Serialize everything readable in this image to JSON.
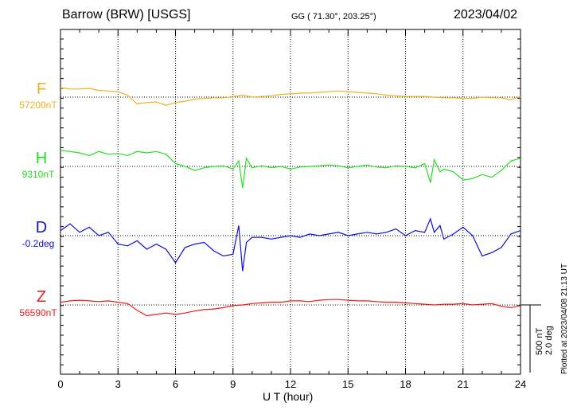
{
  "header": {
    "station": "Barrow (BRW)  [USGS]",
    "coords": "GG ( 71.30°, 203.25°)",
    "date": "2023/04/02"
  },
  "footer": {
    "plotted": "Plotted at 2023/04/08 21:13 UT"
  },
  "scale": {
    "nt": "500 nT",
    "deg": "2.0 deg"
  },
  "chart_data": {
    "type": "line",
    "xlabel": "U T (hour)",
    "xlim": [
      0,
      24
    ],
    "xticks": [
      "0",
      "3",
      "6",
      "9",
      "12",
      "15",
      "18",
      "21",
      "24"
    ],
    "grid": true,
    "series": [
      {
        "name": "F",
        "baseline_label": "57200nT",
        "color": "#f0b020",
        "x": [
          0,
          0.5,
          1,
          1.5,
          2,
          2.5,
          3,
          3.5,
          4,
          4.5,
          5,
          5.5,
          6,
          6.5,
          7,
          7.5,
          8,
          8.5,
          9,
          9.5,
          10,
          10.5,
          11,
          11.5,
          12,
          12.5,
          13,
          13.5,
          14,
          14.5,
          15,
          15.5,
          16,
          16.5,
          17,
          17.5,
          18,
          18.5,
          19,
          19.5,
          20,
          20.5,
          21,
          21.5,
          22,
          22.5,
          23,
          23.5,
          24
        ],
        "y": [
          70,
          60,
          60,
          65,
          50,
          45,
          40,
          15,
          -50,
          -40,
          -35,
          -60,
          -40,
          -30,
          -15,
          -10,
          -5,
          -5,
          5,
          15,
          0,
          5,
          10,
          20,
          25,
          30,
          30,
          35,
          40,
          45,
          40,
          35,
          30,
          25,
          15,
          10,
          5,
          5,
          5,
          0,
          -5,
          -5,
          -10,
          -10,
          0,
          -5,
          -5,
          -20,
          5
        ]
      },
      {
        "name": "H",
        "baseline_label": "9310nT",
        "color": "#22e022",
        "x": [
          0,
          0.5,
          1,
          1.5,
          2,
          2.5,
          3,
          3.5,
          4,
          4.5,
          5,
          5.5,
          6,
          6.5,
          7,
          7.5,
          8,
          8.5,
          9,
          9.3,
          9.5,
          9.7,
          10,
          10.5,
          11,
          11.5,
          12,
          12.5,
          13,
          13.5,
          14,
          14.5,
          15,
          15.5,
          16,
          16.5,
          17,
          17.5,
          18,
          18.5,
          19,
          19.3,
          19.5,
          19.8,
          20,
          20.5,
          21,
          21.5,
          22,
          22.5,
          23,
          23.5,
          24
        ],
        "y": [
          120,
          110,
          100,
          80,
          110,
          90,
          95,
          80,
          110,
          100,
          110,
          90,
          20,
          0,
          -30,
          -10,
          0,
          5,
          -20,
          40,
          -160,
          60,
          -10,
          5,
          -10,
          0,
          -20,
          -5,
          0,
          5,
          10,
          5,
          -10,
          0,
          10,
          -5,
          -10,
          5,
          0,
          -10,
          20,
          -120,
          50,
          -40,
          -20,
          -40,
          -100,
          -90,
          -60,
          -80,
          -30,
          40,
          60
        ]
      },
      {
        "name": "D",
        "baseline_label": "-0.2deg",
        "color": "#1010d0",
        "x": [
          0,
          0.5,
          1,
          1.5,
          2,
          2.5,
          3,
          3.5,
          4,
          4.5,
          5,
          5.5,
          6,
          6.5,
          7,
          7.5,
          8,
          8.5,
          9,
          9.3,
          9.5,
          9.7,
          10,
          10.5,
          11,
          11.5,
          12,
          12.5,
          13,
          13.5,
          14,
          14.5,
          15,
          15.5,
          16,
          16.5,
          17,
          17.5,
          18,
          18.5,
          19,
          19.3,
          19.5,
          19.8,
          20,
          20.5,
          21,
          21.5,
          22,
          22.5,
          23,
          23.5,
          24
        ],
        "y": [
          0.15,
          0.35,
          0.1,
          0.25,
          0.0,
          0.1,
          -0.25,
          -0.3,
          -0.15,
          -0.4,
          -0.25,
          -0.4,
          -0.8,
          -0.35,
          -0.25,
          -0.2,
          -0.45,
          -0.6,
          -0.55,
          0.3,
          -1.05,
          -0.2,
          -0.05,
          -0.05,
          -0.1,
          -0.05,
          0.0,
          -0.05,
          0.05,
          0.0,
          0.05,
          0.1,
          0.0,
          0.05,
          0.1,
          0.05,
          0.1,
          0.2,
          0.0,
          0.15,
          0.1,
          0.5,
          0.1,
          0.3,
          -0.1,
          0.05,
          0.25,
          0.0,
          -0.6,
          -0.5,
          -0.35,
          0.05,
          0.15
        ]
      },
      {
        "name": "Z",
        "baseline_label": "56590nT",
        "color": "#ee1c1c",
        "x": [
          0,
          0.5,
          1,
          1.5,
          2,
          2.5,
          3,
          3.5,
          4,
          4.5,
          5,
          5.5,
          6,
          6.5,
          7,
          7.5,
          8,
          8.5,
          9,
          9.5,
          10,
          10.5,
          11,
          11.5,
          12,
          12.5,
          13,
          13.5,
          14,
          14.5,
          15,
          15.5,
          16,
          16.5,
          17,
          17.5,
          18,
          18.5,
          19,
          19.5,
          20,
          20.5,
          21,
          21.5,
          22,
          22.5,
          23,
          23.5,
          24
        ],
        "y": [
          20,
          30,
          35,
          30,
          25,
          30,
          20,
          10,
          -40,
          -80,
          -70,
          -60,
          -70,
          -60,
          -45,
          -35,
          -30,
          -20,
          -5,
          0,
          10,
          15,
          20,
          20,
          30,
          30,
          25,
          35,
          40,
          40,
          35,
          30,
          30,
          25,
          20,
          20,
          15,
          10,
          5,
          0,
          5,
          5,
          10,
          0,
          5,
          10,
          -10,
          -20,
          -5
        ]
      }
    ],
    "scale_bar": {
      "nt": 500,
      "deg": 2.0
    }
  }
}
